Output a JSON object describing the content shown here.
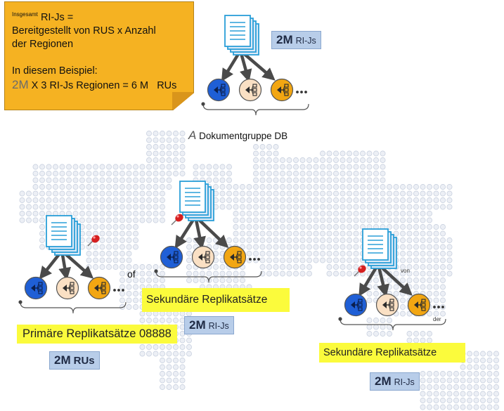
{
  "note": {
    "prefix": "Insgesamt",
    "title": "RI-Js =",
    "line1": "Bereitgestellt von RUS x Anzahl",
    "line2": "der Regionen",
    "example_label": "In diesem Beispiel:",
    "calc_big": "2M",
    "calc_rest": "X 3 RI-Js Regionen = 6 M",
    "calc_unit": "RUs"
  },
  "top_badge": {
    "value": "2M",
    "unit": "RI-Js"
  },
  "doc_group": {
    "glyph": "A",
    "label": "Dokumentgruppe DB"
  },
  "primary": {
    "label": "Primäre Replikatsätze 08888",
    "badge": {
      "value": "2M",
      "unit": "RUs"
    },
    "side_text": "of"
  },
  "secondary_1": {
    "label": "Sekundäre Replikatsätze",
    "badge": {
      "value": "2M",
      "unit": "RI-Js"
    }
  },
  "secondary_2": {
    "label": "Sekundäre Replikatsätze",
    "badge": {
      "value": "2M",
      "unit": "RI-Js"
    },
    "small_top": "von",
    "small_bottom": "der"
  },
  "colors": {
    "note": "#f5b222",
    "badge": "#b8cde9",
    "highlight": "#fbfb3c",
    "partition_blue": "#1f5fd6",
    "partition_peach": "#fae0c4",
    "partition_orange": "#f2a612",
    "map_dot": "#eceff5",
    "pin": "#d62020"
  },
  "icons": [
    "document-stack-icon",
    "partition-icon",
    "map-pin-icon",
    "ellipsis-icon"
  ]
}
